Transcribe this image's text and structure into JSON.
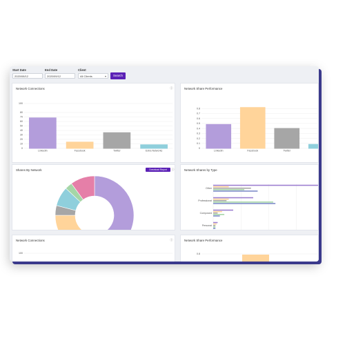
{
  "filters": {
    "start_date_label": "Start Date",
    "start_date_value": "2020/08/12",
    "end_date_label": "End Date",
    "end_date_value": "2020/09/12",
    "client_label": "Client",
    "client_value": "All Clients",
    "search_label": "Search"
  },
  "cards": {
    "network_connections_title": "Network Connections",
    "network_share_performance_title": "Network Share Performance",
    "shares_by_network_title": "Shares By Network",
    "network_shares_by_type_title": "Network Shares by Type",
    "network_connections_2_title": "Network Connections",
    "network_share_performance_2_title": "Network Share Performance",
    "download_report_label": "Download Report",
    "info_icon": "info-icon",
    "calendar_icon": "calendar-icon"
  },
  "chart_data": [
    {
      "type": "bar",
      "title": "Network Connections",
      "categories": [
        "LinkedIn",
        "Facebook",
        "Twitter",
        "Extra Networks"
      ],
      "values": [
        68,
        14,
        35,
        8
      ],
      "ylim": [
        0,
        100
      ],
      "yticks": [
        0,
        10,
        20,
        30,
        40,
        50,
        60,
        70,
        80,
        100
      ],
      "colors": [
        "#b39ddb",
        "#ffd49a",
        "#a6a6a6",
        "#8fcfdc"
      ],
      "grid": true
    },
    {
      "type": "bar",
      "title": "Network Share Performance",
      "categories": [
        "LinkedIn",
        "Facebook",
        "Twitter",
        ""
      ],
      "values": [
        0.48,
        0.82,
        0.4,
        0.08
      ],
      "ylim": [
        0,
        0.9
      ],
      "yticks": [
        "0",
        "0.1",
        "0.2",
        "0.3",
        "0.4",
        "0.5",
        "0.6",
        "0.7",
        "0.8"
      ],
      "colors": [
        "#b39ddb",
        "#ffd49a",
        "#a6a6a6",
        "#8fcfdc"
      ],
      "grid": true
    },
    {
      "type": "pie",
      "title": "Shares By Network",
      "slices": [
        {
          "value": 54,
          "color": "#b39ddb"
        },
        {
          "value": 1,
          "color": "#e57373"
        },
        {
          "value": 20,
          "color": "#ffd49a"
        },
        {
          "value": 4,
          "color": "#a6a6a6"
        },
        {
          "value": 8,
          "color": "#8fcfdc"
        },
        {
          "value": 3,
          "color": "#a5d6a7"
        },
        {
          "value": 10,
          "color": "#e57fa8"
        }
      ]
    },
    {
      "type": "bar",
      "orientation": "horizontal",
      "title": "Network Shares by Type",
      "categories": [
        "Other",
        "Professional",
        "Composed",
        "Personal"
      ],
      "series": [
        {
          "color": "#9c7fd0",
          "values": [
            100,
            36,
            18,
            4
          ]
        },
        {
          "color": "#ffd49a",
          "values": [
            14,
            14,
            8,
            3
          ]
        },
        {
          "color": "#a6a6a6",
          "values": [
            34,
            12,
            4,
            2
          ]
        },
        {
          "color": "#a5d6a7",
          "values": [
            28,
            54,
            10,
            2
          ]
        },
        {
          "color": "#7e8cc9",
          "values": [
            40,
            56,
            6,
            2
          ]
        }
      ],
      "xlim": [
        0,
        100
      ],
      "grid": true
    },
    {
      "type": "bar",
      "title": "Network Connections",
      "yticks": [
        "100"
      ]
    },
    {
      "type": "bar",
      "title": "Network Share Performance",
      "yticks": [
        "0.8"
      ]
    }
  ]
}
